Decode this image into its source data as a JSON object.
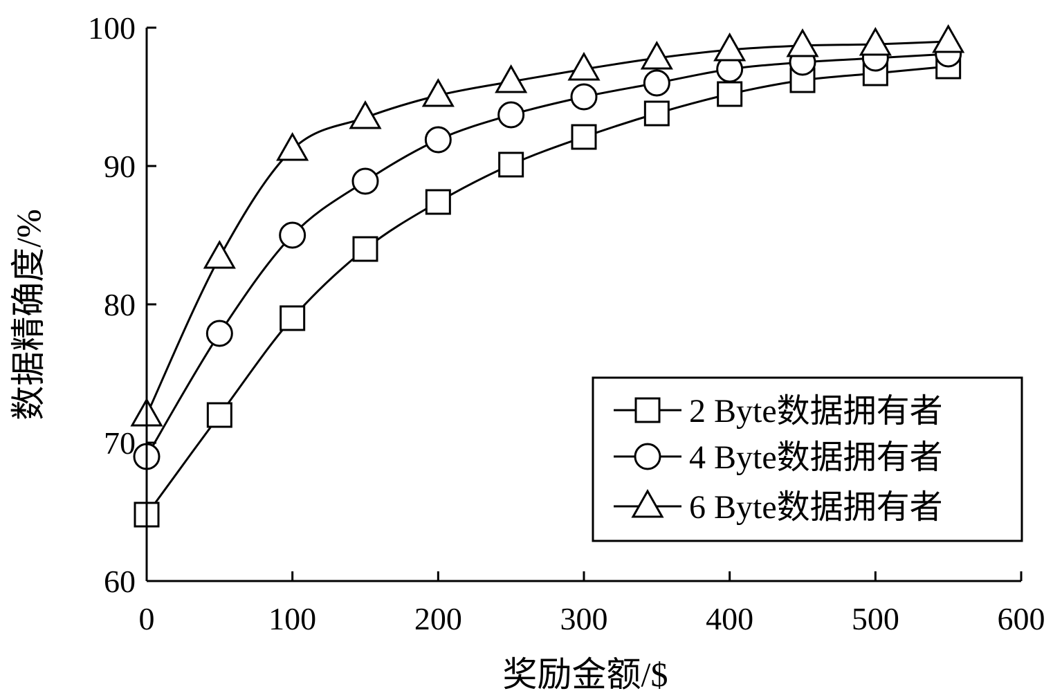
{
  "chart_data": {
    "type": "line",
    "xlabel": "奖励金额/$",
    "ylabel": "数据精确度/%",
    "xlim": [
      0,
      600
    ],
    "ylim": [
      60,
      100
    ],
    "x_ticks": [
      0,
      100,
      200,
      300,
      400,
      500,
      600
    ],
    "y_ticks": [
      60,
      70,
      80,
      90,
      100
    ],
    "grid": false,
    "legend_position": "bottom-right",
    "x": [
      0,
      50,
      100,
      150,
      200,
      250,
      300,
      350,
      400,
      450,
      500,
      550
    ],
    "series": [
      {
        "name": "2 Byte数据拥有者",
        "marker": "square",
        "values": [
          64.8,
          72.0,
          79.0,
          84.0,
          87.4,
          90.1,
          92.1,
          93.8,
          95.2,
          96.2,
          96.7,
          97.2
        ]
      },
      {
        "name": "4 Byte数据拥有者",
        "marker": "circle",
        "values": [
          69.0,
          77.9,
          85.0,
          88.9,
          91.9,
          93.7,
          95.0,
          96.0,
          97.0,
          97.5,
          97.8,
          98.1
        ]
      },
      {
        "name": "6 Byte数据拥有者",
        "marker": "triangle",
        "values": [
          72.0,
          83.4,
          91.2,
          93.5,
          95.1,
          96.1,
          97.0,
          97.8,
          98.4,
          98.7,
          98.8,
          99.0
        ]
      }
    ]
  }
}
